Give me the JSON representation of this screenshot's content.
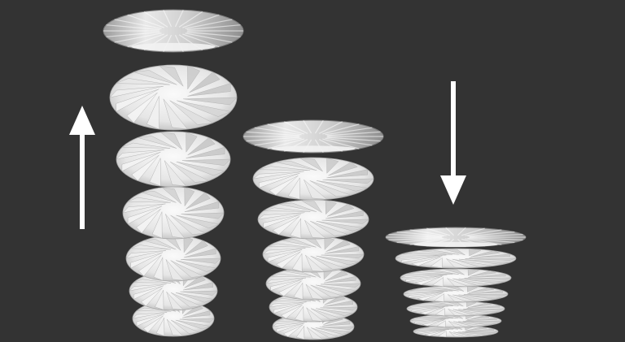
{
  "scene": {
    "background_color": "#333333",
    "surface_color": "#e6e6e6",
    "arrow_color": "#ffffff",
    "objects": [
      {
        "name": "tall-tower",
        "state": "expanded",
        "segments": 6
      },
      {
        "name": "medium-tower",
        "state": "intermediate",
        "segments": 6
      },
      {
        "name": "short-tower",
        "state": "collapsed",
        "segments": 6
      }
    ],
    "arrows": [
      {
        "name": "extend-arrow",
        "direction": "up-arrow-icon"
      },
      {
        "name": "compress-arrow",
        "direction": "down-arrow-icon"
      }
    ]
  }
}
